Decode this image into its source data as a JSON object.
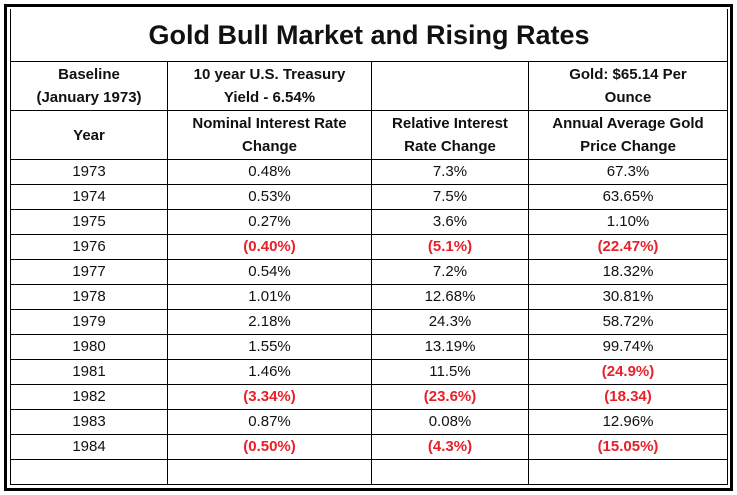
{
  "title": "Gold Bull Market and Rising Rates",
  "baseline": [
    "Baseline\n(January 1973)",
    "10 year U.S. Treasury\nYield - 6.54%",
    "Gold: $65.14 Per\nOunce"
  ],
  "header": [
    "Year",
    "Nominal Interest Rate\nChange",
    "Relative Interest\nRate Change",
    "Annual Average Gold\nPrice Change"
  ],
  "rows": [
    [
      "1973",
      "0.48%",
      "7.3%",
      "67.3%"
    ],
    [
      "1974",
      "0.53%",
      "7.5%",
      "63.65%"
    ],
    [
      "1975",
      "0.27%",
      "3.6%",
      "1.10%"
    ],
    [
      "1976",
      "(0.40%)",
      "(5.1%)",
      "(22.47%)"
    ],
    [
      "1977",
      "0.54%",
      "7.2%",
      "18.32%"
    ],
    [
      "1978",
      "1.01%",
      "12.68%",
      "30.81%"
    ],
    [
      "1979",
      "2.18%",
      "24.3%",
      "58.72%"
    ],
    [
      "1980",
      "1.55%",
      "13.19%",
      "99.74%"
    ],
    [
      "1981",
      "1.46%",
      "11.5%",
      "(24.9%)"
    ],
    [
      "1982",
      "(3.34%)",
      "(23.6%)",
      "(18.34)"
    ],
    [
      "1983",
      "0.87%",
      "0.08%",
      "12.96%"
    ],
    [
      "1984",
      "(0.50%)",
      "(4.3%)",
      "(15.05%)"
    ]
  ]
}
